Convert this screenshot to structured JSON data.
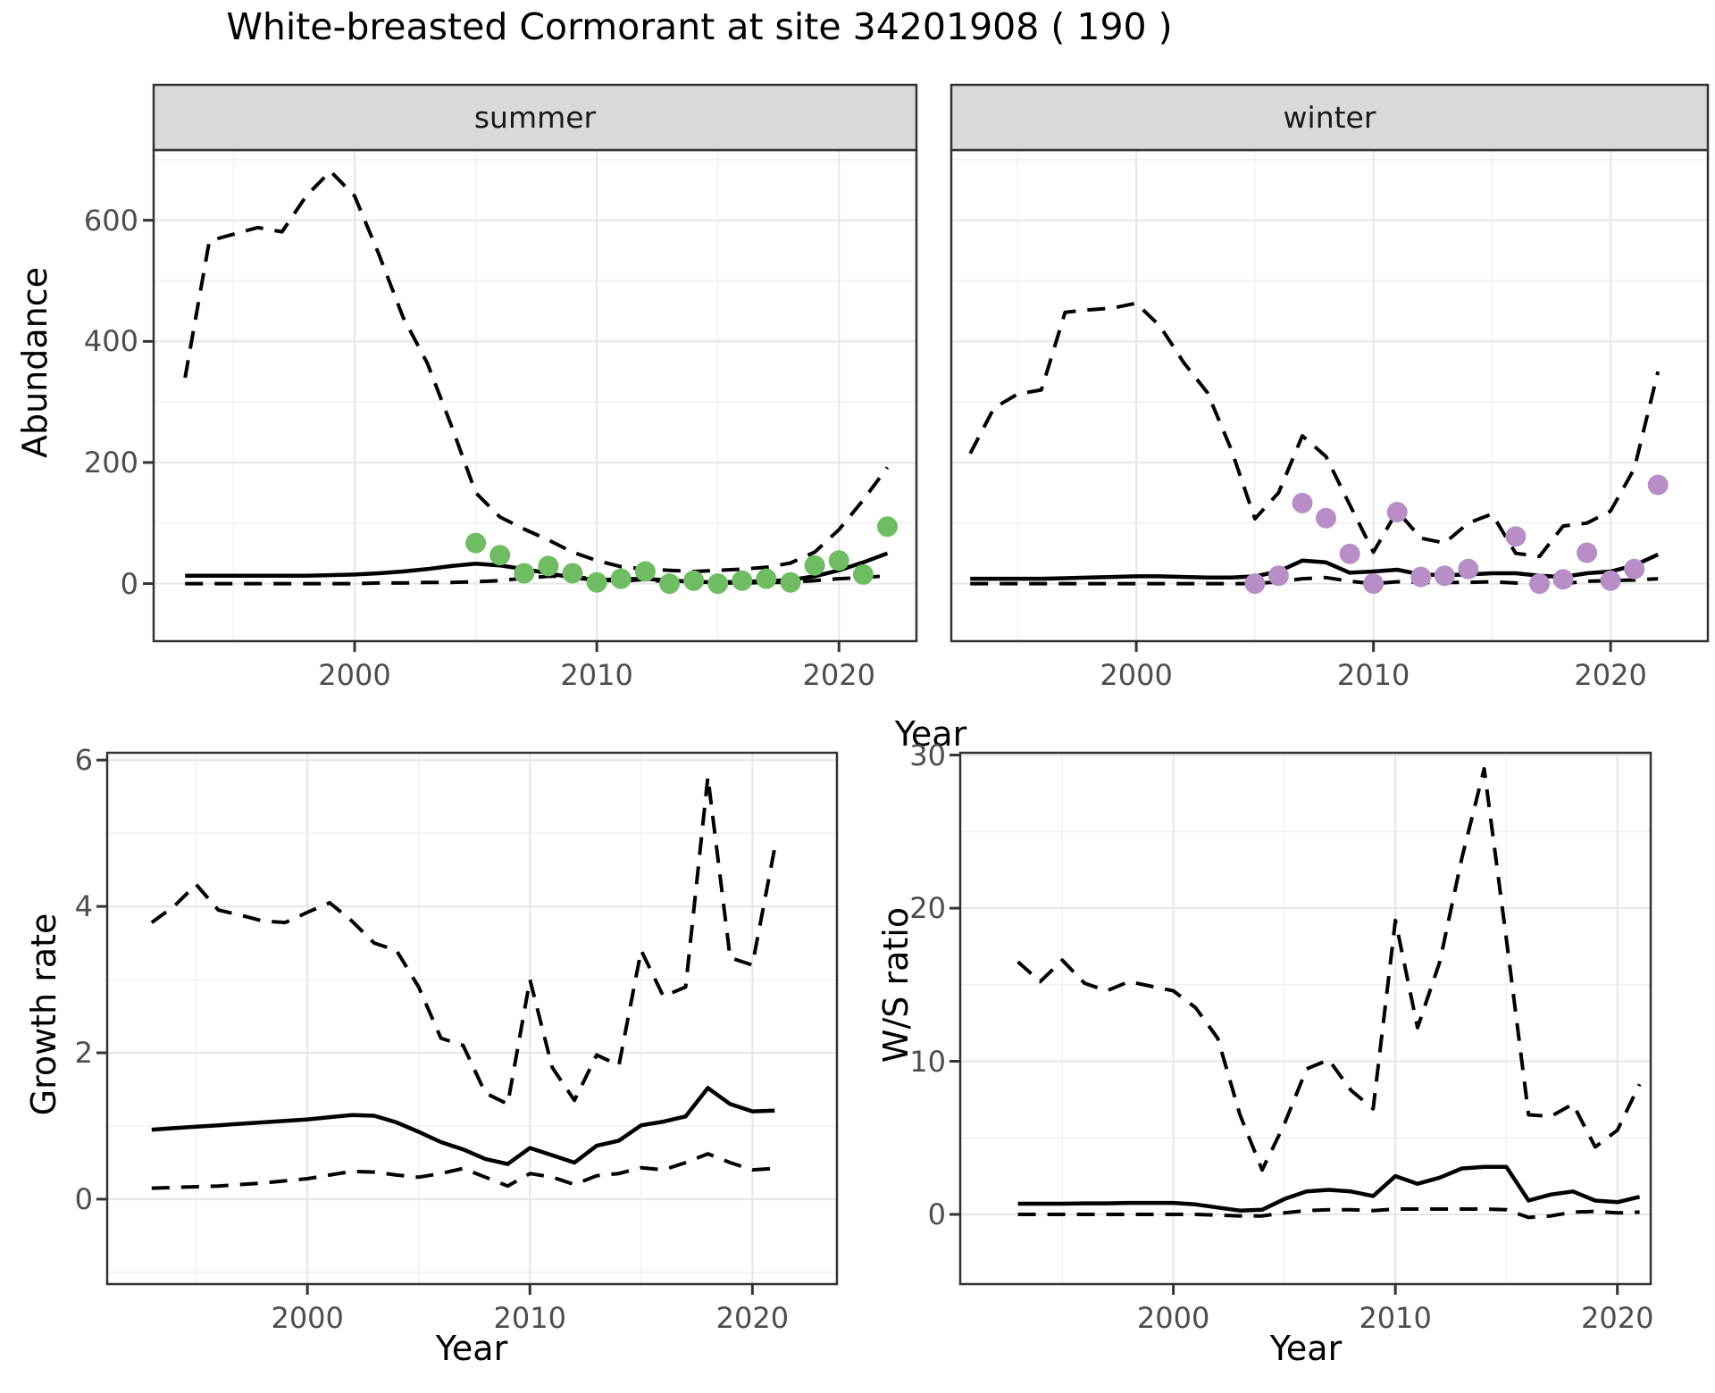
{
  "title": "White-breasted Cormorant at site 34201908 ( 190 )",
  "colors": {
    "summer_points": "#6fbc63",
    "winter_points": "#b78fc6",
    "line": "#000000",
    "strip_bg": "#d9d9d9",
    "panel_border": "#333333",
    "grid_major": "#e6e6e6",
    "grid_minor": "#f1f1f1",
    "axis_text": "#4d4d4d"
  },
  "axes": {
    "top_xlabel": "Year",
    "bottom_left_xlabel": "Year",
    "bottom_right_xlabel": "Year",
    "abundance_ylabel": "Abundance",
    "growth_ylabel": "Growth rate",
    "ws_ylabel": "W/S ratio",
    "x_tick_labels": [
      "2000",
      "2010",
      "2020"
    ],
    "abundance_tick_labels": [
      "0",
      "200",
      "400",
      "600"
    ],
    "growth_tick_labels": [
      "0",
      "2",
      "4",
      "6"
    ],
    "ws_tick_labels": [
      "0",
      "10",
      "20",
      "30"
    ]
  },
  "chart_data": [
    {
      "id": "abundance-summer",
      "type": "line",
      "facet_label": "summer",
      "xlabel": "Year",
      "ylabel": "Abundance",
      "xlim": [
        1991.7,
        2023.2
      ],
      "ylim": [
        -95,
        716
      ],
      "x": [
        1993,
        1994,
        1995,
        1996,
        1997,
        1998,
        1999,
        2000,
        2001,
        2002,
        2003,
        2004,
        2005,
        2006,
        2007,
        2008,
        2009,
        2010,
        2011,
        2012,
        2013,
        2014,
        2015,
        2016,
        2017,
        2018,
        2019,
        2020,
        2021,
        2022
      ],
      "series": [
        {
          "name": "mean",
          "style": "solid",
          "values": [
            13,
            13,
            13,
            13,
            13,
            13,
            14,
            15,
            17,
            20,
            24,
            29,
            33,
            30,
            24,
            17,
            10,
            6,
            7,
            8,
            5,
            3,
            2,
            3,
            4,
            6,
            12,
            22,
            35,
            50
          ]
        },
        {
          "name": "upper_ci",
          "style": "dashed",
          "values": [
            340,
            566,
            577,
            588,
            581,
            640,
            681,
            640,
            544,
            440,
            364,
            260,
            150,
            110,
            90,
            72,
            52,
            38,
            28,
            24,
            22,
            20,
            22,
            24,
            27,
            34,
            52,
            89,
            138,
            192
          ]
        },
        {
          "name": "lower_ci",
          "style": "dashed",
          "values": [
            0,
            0,
            0,
            0,
            0,
            0,
            0,
            0,
            1,
            1,
            2,
            2,
            3,
            5,
            9,
            12,
            13,
            6,
            4,
            7,
            2,
            1,
            1,
            1,
            2,
            2,
            5,
            8,
            10,
            13
          ]
        }
      ],
      "points": {
        "name": "observed_counts",
        "color": "#6fbc63",
        "x": [
          2005,
          2006,
          2007,
          2008,
          2009,
          2010,
          2011,
          2012,
          2013,
          2014,
          2015,
          2016,
          2017,
          2018,
          2019,
          2020,
          2021,
          2022
        ],
        "y": [
          67,
          47,
          17,
          29,
          17,
          2,
          8,
          20,
          0,
          5,
          0,
          5,
          8,
          2,
          30,
          38,
          15,
          94
        ]
      }
    },
    {
      "id": "abundance-winter",
      "type": "line",
      "facet_label": "winter",
      "xlabel": "Year",
      "ylabel": "Abundance",
      "xlim": [
        1992.2,
        2024.1
      ],
      "ylim": [
        -95,
        716
      ],
      "x": [
        1993,
        1994,
        1995,
        1996,
        1997,
        1998,
        1999,
        2000,
        2001,
        2002,
        2003,
        2004,
        2005,
        2006,
        2007,
        2008,
        2009,
        2010,
        2011,
        2012,
        2013,
        2014,
        2015,
        2016,
        2017,
        2018,
        2019,
        2020,
        2021,
        2022
      ],
      "series": [
        {
          "name": "mean",
          "style": "solid",
          "values": [
            8,
            8,
            8,
            8,
            9,
            10,
            11,
            12,
            12,
            11,
            10,
            10,
            12,
            20,
            38,
            35,
            18,
            20,
            23,
            15,
            14,
            15,
            17,
            17,
            13,
            11,
            17,
            20,
            30,
            48
          ]
        },
        {
          "name": "upper_ci",
          "style": "dashed",
          "values": [
            215,
            290,
            313,
            320,
            448,
            452,
            455,
            463,
            425,
            365,
            315,
            222,
            107,
            150,
            244,
            210,
            130,
            52,
            120,
            75,
            67,
            100,
            115,
            50,
            45,
            95,
            100,
            120,
            190,
            350
          ]
        },
        {
          "name": "lower_ci",
          "style": "dashed",
          "values": [
            0,
            0,
            0,
            0,
            0,
            0,
            0,
            0,
            0,
            0,
            0,
            0,
            0,
            3,
            8,
            10,
            4,
            0,
            3,
            2,
            2,
            2,
            3,
            1,
            0,
            0,
            4,
            5,
            6,
            8
          ]
        }
      ],
      "points": {
        "name": "observed_counts",
        "color": "#b78fc6",
        "x": [
          2005,
          2006,
          2007,
          2008,
          2009,
          2010,
          2011,
          2012,
          2013,
          2014,
          2016,
          2017,
          2018,
          2019,
          2020,
          2021,
          2022
        ],
        "y": [
          0,
          13,
          133,
          108,
          49,
          0,
          118,
          11,
          13,
          24,
          78,
          0,
          7,
          51,
          5,
          24,
          163
        ]
      }
    },
    {
      "id": "growth-rate",
      "type": "line",
      "facet_label": "",
      "xlabel": "Year",
      "ylabel": "Growth rate",
      "xlim": [
        1991.0,
        2023.8
      ],
      "ylim": [
        -1.16,
        6.1
      ],
      "x": [
        1993,
        1994,
        1995,
        1996,
        1997,
        1998,
        1999,
        2000,
        2001,
        2002,
        2003,
        2004,
        2005,
        2006,
        2007,
        2008,
        2009,
        2010,
        2011,
        2012,
        2013,
        2014,
        2015,
        2016,
        2017,
        2018,
        2019,
        2020,
        2021
      ],
      "series": [
        {
          "name": "mean",
          "style": "solid",
          "values": [
            0.95,
            0.97,
            0.99,
            1.01,
            1.03,
            1.05,
            1.07,
            1.09,
            1.12,
            1.15,
            1.14,
            1.05,
            0.92,
            0.78,
            0.68,
            0.55,
            0.48,
            0.7,
            0.6,
            0.5,
            0.73,
            0.8,
            1.01,
            1.06,
            1.13,
            1.52,
            1.3,
            1.2,
            1.21
          ]
        },
        {
          "name": "upper_ci",
          "style": "dashed",
          "values": [
            3.78,
            4.0,
            4.3,
            3.95,
            3.88,
            3.8,
            3.78,
            3.92,
            4.05,
            3.8,
            3.5,
            3.4,
            2.9,
            2.2,
            2.1,
            1.45,
            1.3,
            3.0,
            1.8,
            1.35,
            1.97,
            1.83,
            3.4,
            2.77,
            2.9,
            5.77,
            3.3,
            3.2,
            4.8
          ]
        },
        {
          "name": "lower_ci",
          "style": "dashed",
          "values": [
            0.15,
            0.16,
            0.17,
            0.18,
            0.2,
            0.22,
            0.25,
            0.28,
            0.33,
            0.38,
            0.37,
            0.33,
            0.3,
            0.35,
            0.42,
            0.3,
            0.18,
            0.35,
            0.3,
            0.2,
            0.32,
            0.35,
            0.43,
            0.4,
            0.5,
            0.62,
            0.5,
            0.4,
            0.42
          ]
        }
      ]
    },
    {
      "id": "ws-ratio",
      "type": "line",
      "facet_label": "",
      "xlabel": "Year",
      "ylabel": "W/S ratio",
      "xlim": [
        1990.4,
        2021.5
      ],
      "ylim": [
        -4.55,
        30.15
      ],
      "x": [
        1993,
        1994,
        1995,
        1996,
        1997,
        1998,
        1999,
        2000,
        2001,
        2002,
        2003,
        2004,
        2005,
        2006,
        2007,
        2008,
        2009,
        2010,
        2011,
        2012,
        2013,
        2014,
        2015,
        2016,
        2017,
        2018,
        2019,
        2020,
        2021
      ],
      "series": [
        {
          "name": "mean",
          "style": "solid",
          "values": [
            0.7,
            0.7,
            0.7,
            0.72,
            0.72,
            0.75,
            0.75,
            0.75,
            0.65,
            0.45,
            0.25,
            0.3,
            1.0,
            1.5,
            1.6,
            1.5,
            1.2,
            2.5,
            2.0,
            2.4,
            3.0,
            3.1,
            3.1,
            0.9,
            1.3,
            1.5,
            0.9,
            0.8,
            1.15
          ]
        },
        {
          "name": "upper_ci",
          "style": "dashed",
          "values": [
            16.5,
            15.2,
            16.6,
            15.1,
            14.6,
            15.2,
            14.9,
            14.6,
            13.5,
            11.5,
            6.5,
            2.9,
            5.9,
            9.5,
            10.1,
            8.1,
            6.9,
            19.2,
            12.2,
            16.5,
            23.3,
            29.1,
            18.0,
            6.5,
            6.4,
            7.2,
            4.4,
            5.5,
            8.5
          ]
        },
        {
          "name": "lower_ci",
          "style": "dashed",
          "values": [
            0,
            0,
            0,
            0,
            0,
            0,
            0,
            0,
            0,
            -0.05,
            -0.1,
            -0.1,
            0.1,
            0.25,
            0.3,
            0.3,
            0.25,
            0.35,
            0.35,
            0.35,
            0.35,
            0.35,
            0.3,
            -0.2,
            -0.1,
            0.15,
            0.2,
            0.1,
            0.15
          ]
        }
      ]
    }
  ]
}
